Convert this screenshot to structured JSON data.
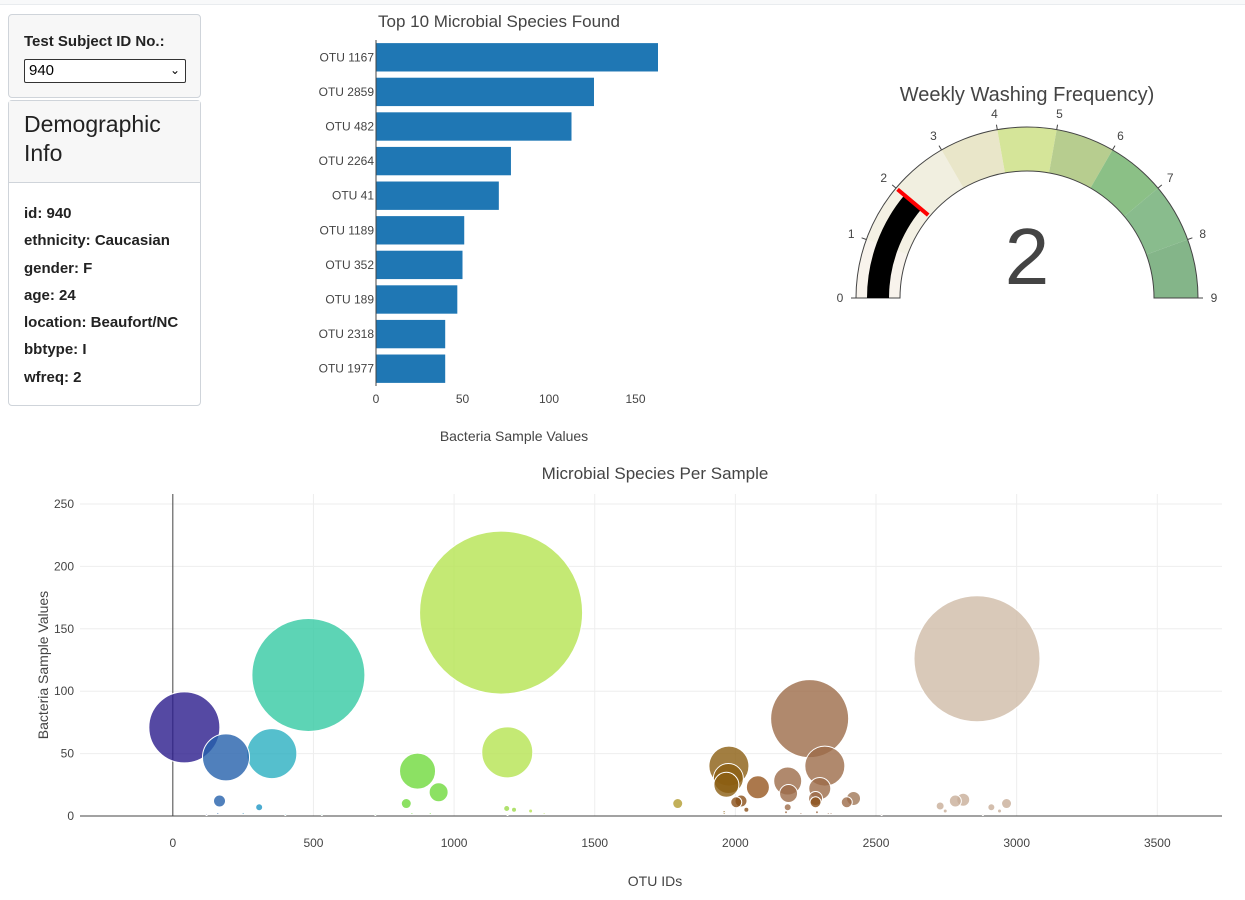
{
  "selector": {
    "label": "Test Subject ID No.:",
    "selected": "940"
  },
  "demographics": {
    "title": "Demographic Info",
    "rows": [
      "id: 940",
      "ethnicity: Caucasian",
      "gender: F",
      "age: 24",
      "location: Beaufort/NC",
      "bbtype: I",
      "wfreq: 2"
    ]
  },
  "chart_data": [
    {
      "type": "bar",
      "orientation": "horizontal",
      "title": "Top 10 Microbial Species Found",
      "xlabel": "Bacteria Sample Values",
      "ylabel": "",
      "categories": [
        "OTU 1167",
        "OTU 2859",
        "OTU 482",
        "OTU 2264",
        "OTU 41",
        "OTU 1189",
        "OTU 352",
        "OTU 189",
        "OTU 2318",
        "OTU 1977"
      ],
      "values": [
        163,
        126,
        113,
        78,
        71,
        51,
        50,
        47,
        40,
        40
      ],
      "xlim": [
        0,
        163
      ],
      "xticks": [
        0,
        50,
        100,
        150
      ],
      "color": "#1f77b4"
    },
    {
      "type": "gauge",
      "title": "Weekly Washing Frequency)",
      "value": 2,
      "range": [
        0,
        9
      ],
      "ticks": [
        0,
        1,
        2,
        3,
        4,
        5,
        6,
        7,
        8,
        9
      ],
      "threshold": 2,
      "bar_color": "#000000",
      "threshold_color": "#ff0000",
      "steps": [
        {
          "range": [
            0,
            1
          ],
          "color": "#f8f3ec"
        },
        {
          "range": [
            1,
            2
          ],
          "color": "#f4f1e4"
        },
        {
          "range": [
            2,
            3
          ],
          "color": "#f1efe0"
        },
        {
          "range": [
            3,
            4
          ],
          "color": "#e9e6c9"
        },
        {
          "range": [
            4,
            5
          ],
          "color": "#d5e599"
        },
        {
          "range": [
            5,
            6
          ],
          "color": "#b7cd8f"
        },
        {
          "range": [
            6,
            7
          ],
          "color": "#8bc086"
        },
        {
          "range": [
            7,
            8
          ],
          "color": "#89bc8d"
        },
        {
          "range": [
            8,
            9
          ],
          "color": "#84b589"
        }
      ]
    },
    {
      "type": "scatter",
      "subtype": "bubble",
      "title": "Microbial Species Per Sample",
      "xlabel": "OTU IDs",
      "ylabel": "Bacteria Sample Values",
      "xlim": [
        -330,
        3730
      ],
      "ylim": [
        0,
        258
      ],
      "xticks": [
        0,
        500,
        1000,
        1500,
        2000,
        2500,
        3000,
        3500
      ],
      "yticks": [
        0,
        50,
        100,
        150,
        200,
        250
      ],
      "grid": true,
      "points": [
        {
          "x": 1167,
          "y": 163,
          "color": "#b5e451"
        },
        {
          "x": 2859,
          "y": 126,
          "color": "#d0bca8"
        },
        {
          "x": 482,
          "y": 113,
          "color": "#34c9a3"
        },
        {
          "x": 2264,
          "y": 78,
          "color": "#9c6c48"
        },
        {
          "x": 41,
          "y": 71,
          "color": "#2a1b8c"
        },
        {
          "x": 1189,
          "y": 51,
          "color": "#b5e451"
        },
        {
          "x": 352,
          "y": 50,
          "color": "#2bafc0"
        },
        {
          "x": 189,
          "y": 47,
          "color": "#2460ab"
        },
        {
          "x": 2318,
          "y": 40,
          "color": "#9c6c48"
        },
        {
          "x": 1977,
          "y": 40,
          "color": "#8b5e12"
        },
        {
          "x": 870,
          "y": 36,
          "color": "#6fd93c"
        },
        {
          "x": 1975,
          "y": 30,
          "color": "#8b5e12"
        },
        {
          "x": 2186,
          "y": 28,
          "color": "#9c6c48"
        },
        {
          "x": 1968,
          "y": 25,
          "color": "#8b5e12"
        },
        {
          "x": 2080,
          "y": 23,
          "color": "#96561f"
        },
        {
          "x": 2300,
          "y": 22,
          "color": "#9c6c48"
        },
        {
          "x": 945,
          "y": 19,
          "color": "#6fd93c"
        },
        {
          "x": 2189,
          "y": 18,
          "color": "#9c6c48"
        },
        {
          "x": 2285,
          "y": 14,
          "color": "#9c6c48"
        },
        {
          "x": 2420,
          "y": 14,
          "color": "#a07858"
        },
        {
          "x": 2810,
          "y": 13,
          "color": "#c8ae98"
        },
        {
          "x": 166,
          "y": 12,
          "color": "#2460ab"
        },
        {
          "x": 2782,
          "y": 12,
          "color": "#c8ae98"
        },
        {
          "x": 2020,
          "y": 12,
          "color": "#8a4f18"
        },
        {
          "x": 2285,
          "y": 11,
          "color": "#8a4f18"
        },
        {
          "x": 2003,
          "y": 11,
          "color": "#8a4f18"
        },
        {
          "x": 2396,
          "y": 11,
          "color": "#9c6c48"
        },
        {
          "x": 1795,
          "y": 10,
          "color": "#b39c31"
        },
        {
          "x": 2964,
          "y": 10,
          "color": "#c8ae98"
        },
        {
          "x": 830,
          "y": 10,
          "color": "#6fd93c"
        },
        {
          "x": 2728,
          "y": 8,
          "color": "#c8ae98"
        },
        {
          "x": 2910,
          "y": 7,
          "color": "#c8ae98"
        },
        {
          "x": 2186,
          "y": 7,
          "color": "#9c6c48"
        },
        {
          "x": 307,
          "y": 7,
          "color": "#1e96c4"
        },
        {
          "x": 1187,
          "y": 6,
          "color": "#9cd94a"
        },
        {
          "x": 1213,
          "y": 5,
          "color": "#9cd94a"
        },
        {
          "x": 2039,
          "y": 5,
          "color": "#8a4f18"
        },
        {
          "x": 2746,
          "y": 4,
          "color": "#c8ae98"
        },
        {
          "x": 2939,
          "y": 4,
          "color": "#c8ae98"
        },
        {
          "x": 1272,
          "y": 4,
          "color": "#b5e451"
        },
        {
          "x": 1960,
          "y": 3,
          "color": "#8b5e12"
        },
        {
          "x": 2180,
          "y": 3,
          "color": "#9c6c48"
        },
        {
          "x": 2290,
          "y": 3,
          "color": "#9c6c48"
        },
        {
          "x": 2340,
          "y": 2,
          "color": "#a07858"
        },
        {
          "x": 2330,
          "y": 2,
          "color": "#a07858"
        },
        {
          "x": 915,
          "y": 2,
          "color": "#6fd93c"
        },
        {
          "x": 1320,
          "y": 2,
          "color": "#b5e451"
        },
        {
          "x": 1960,
          "y": 2,
          "color": "#8b5e12"
        },
        {
          "x": 2233,
          "y": 2,
          "color": "#9c6c48"
        },
        {
          "x": 850,
          "y": 2,
          "color": "#6fd93c"
        },
        {
          "x": 160,
          "y": 2,
          "color": "#2460ab"
        },
        {
          "x": 250,
          "y": 2,
          "color": "#2a8ab8"
        },
        {
          "x": 720,
          "y": 1,
          "color": "#5cd06a"
        },
        {
          "x": 2880,
          "y": 1,
          "color": "#c8ae98"
        },
        {
          "x": 120,
          "y": 1,
          "color": "#2a3d9c"
        },
        {
          "x": 530,
          "y": 1,
          "color": "#34c9a3"
        },
        {
          "x": 400,
          "y": 1,
          "color": "#2bafc0"
        },
        {
          "x": 2520,
          "y": 1,
          "color": "#a88a70"
        },
        {
          "x": 1190,
          "y": 1,
          "color": "#b5e451"
        }
      ]
    }
  ]
}
